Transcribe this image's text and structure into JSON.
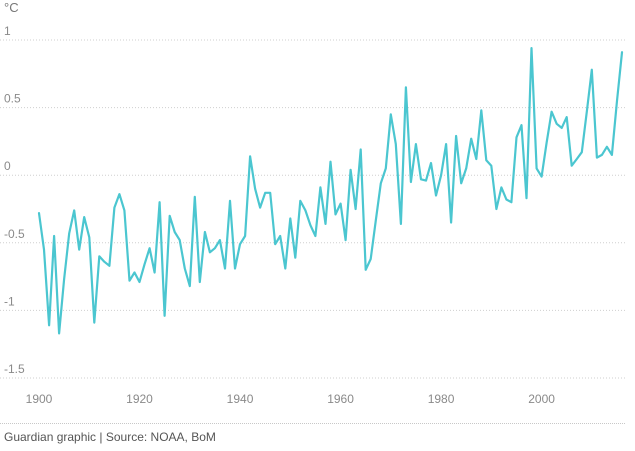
{
  "chart_data": {
    "type": "line",
    "title": "",
    "ylabel": "°C",
    "xlabel": "",
    "xlim": [
      1895,
      2016
    ],
    "ylim": [
      -1.5,
      1
    ],
    "x_ticks": [
      1900,
      1920,
      1940,
      1960,
      1980,
      2000
    ],
    "y_ticks": [
      1,
      0.5,
      0,
      -0.5,
      -1,
      -1.5
    ],
    "y_tick_labels": [
      "1",
      "0.5",
      "0",
      "-0.5",
      "-1",
      "-1.5"
    ],
    "grid": "horizontal-dotted",
    "color": "#4bc6d0",
    "series": [
      {
        "name": "",
        "x": [
          1900,
          1901,
          1902,
          1903,
          1904,
          1905,
          1906,
          1907,
          1908,
          1909,
          1910,
          1911,
          1912,
          1913,
          1914,
          1915,
          1916,
          1917,
          1918,
          1919,
          1920,
          1921,
          1922,
          1923,
          1924,
          1925,
          1926,
          1927,
          1928,
          1929,
          1930,
          1931,
          1932,
          1933,
          1934,
          1935,
          1936,
          1937,
          1938,
          1939,
          1940,
          1941,
          1942,
          1943,
          1944,
          1945,
          1946,
          1947,
          1948,
          1949,
          1950,
          1951,
          1952,
          1953,
          1954,
          1955,
          1956,
          1957,
          1958,
          1959,
          1960,
          1961,
          1962,
          1963,
          1964,
          1965,
          1966,
          1967,
          1968,
          1969,
          1970,
          1971,
          1972,
          1973,
          1974,
          1975,
          1976,
          1977,
          1978,
          1979,
          1980,
          1981,
          1982,
          1983,
          1984,
          1985,
          1986,
          1987,
          1988,
          1989,
          1990,
          1991,
          1992,
          1993,
          1994,
          1995,
          1996,
          1997,
          1998,
          1999,
          2000,
          2001,
          2002,
          2003,
          2004,
          2005,
          2006,
          2007,
          2008,
          2009,
          2010,
          2011,
          2012,
          2013,
          2014,
          2015,
          2016
        ],
        "values": [
          -0.28,
          -0.55,
          -1.11,
          -0.45,
          -1.17,
          -0.77,
          -0.43,
          -0.26,
          -0.55,
          -0.31,
          -0.46,
          -1.09,
          -0.6,
          -0.64,
          -0.67,
          -0.24,
          -0.14,
          -0.26,
          -0.78,
          -0.72,
          -0.79,
          -0.66,
          -0.54,
          -0.72,
          -0.2,
          -1.04,
          -0.3,
          -0.42,
          -0.48,
          -0.69,
          -0.82,
          -0.16,
          -0.79,
          -0.42,
          -0.57,
          -0.54,
          -0.48,
          -0.69,
          -0.19,
          -0.69,
          -0.51,
          -0.45,
          0.14,
          -0.1,
          -0.24,
          -0.13,
          -0.13,
          -0.51,
          -0.45,
          -0.69,
          -0.32,
          -0.61,
          -0.19,
          -0.26,
          -0.37,
          -0.45,
          -0.09,
          -0.36,
          0.1,
          -0.29,
          -0.21,
          -0.48,
          0.04,
          -0.25,
          0.19,
          -0.7,
          -0.62,
          -0.34,
          -0.06,
          0.05,
          0.45,
          0.23,
          -0.36,
          0.65,
          -0.05,
          0.23,
          -0.03,
          -0.04,
          0.09,
          -0.15,
          0.0,
          0.23,
          -0.35,
          0.29,
          -0.06,
          0.05,
          0.27,
          0.12,
          0.48,
          0.11,
          0.07,
          -0.25,
          -0.09,
          -0.18,
          -0.2,
          0.28,
          0.37,
          -0.17,
          0.94,
          0.05,
          -0.01,
          0.24,
          0.47,
          0.38,
          0.35,
          0.43,
          0.07,
          0.12,
          0.17,
          0.47,
          0.78,
          0.13,
          0.15,
          0.21,
          0.15,
          0.55,
          0.91
        ]
      }
    ],
    "source_text": "Guardian graphic | Source: NOAA, BoM"
  }
}
